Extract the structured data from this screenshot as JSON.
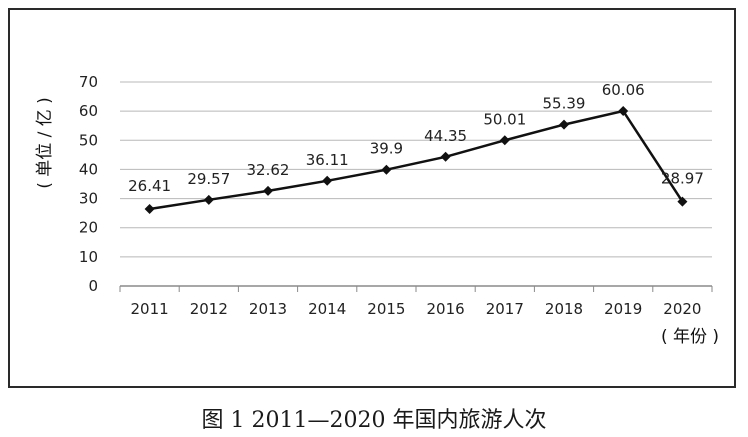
{
  "chart_data": {
    "type": "line",
    "categories": [
      "2011",
      "2012",
      "2013",
      "2014",
      "2015",
      "2016",
      "2017",
      "2018",
      "2019",
      "2020"
    ],
    "values": [
      26.41,
      29.57,
      32.62,
      36.11,
      39.9,
      44.35,
      50.01,
      55.39,
      60.06,
      28.97
    ],
    "data_labels": [
      "26.41",
      "29.57",
      "32.62",
      "36.11",
      "39.9",
      "44.35",
      "50.01",
      "55.39",
      "60.06",
      "28.97"
    ],
    "ylabel": "( 单位 / 亿 )",
    "xlabel": "( 年份 )",
    "ylim": [
      0,
      70
    ],
    "yticks": [
      "0",
      "10",
      "20",
      "30",
      "40",
      "50",
      "60",
      "70"
    ],
    "grid": true,
    "marker": "diamond",
    "line_color": "#111111"
  },
  "caption": "图 1  2011—2020 年国内旅游人次"
}
